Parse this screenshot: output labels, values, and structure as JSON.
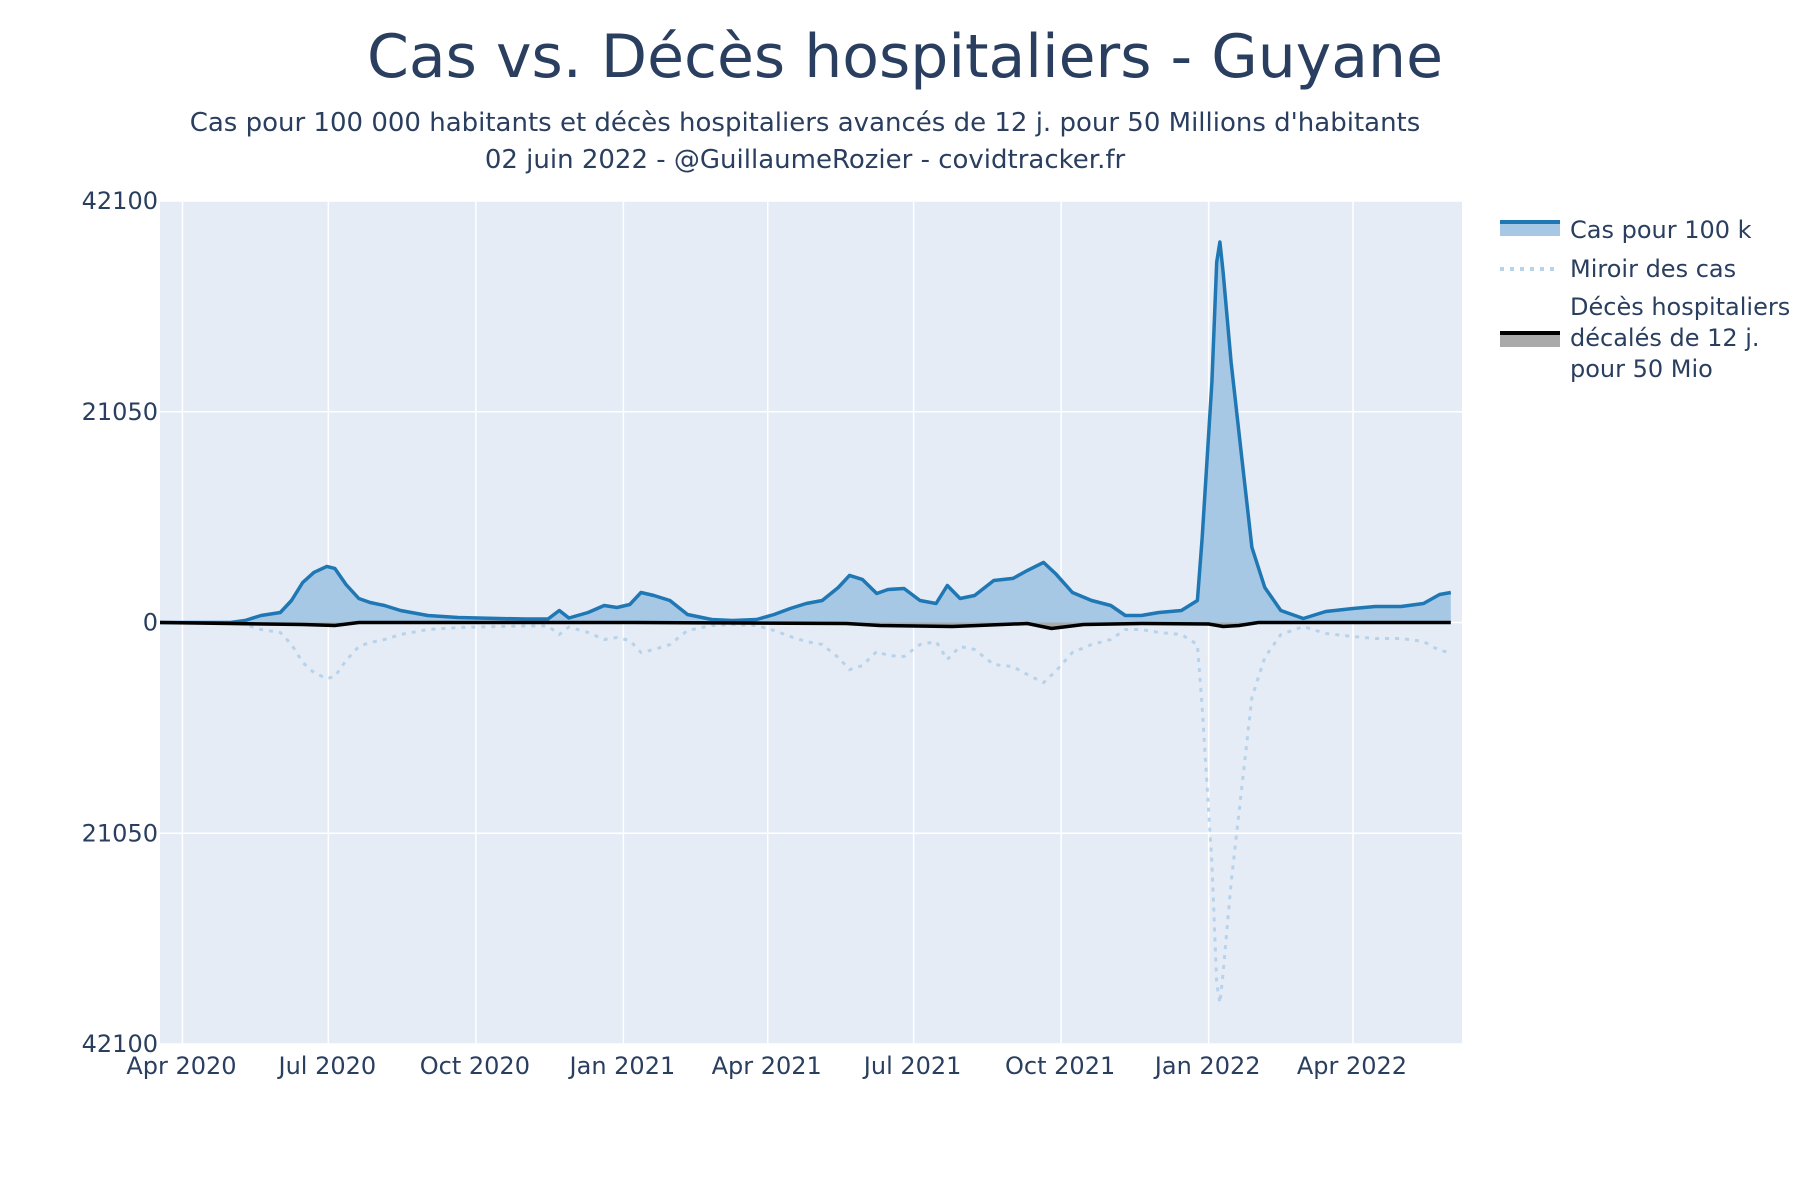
{
  "title": "Cas vs. Décès hospitaliers - Guyane",
  "subtitle_line1": "Cas pour 100 000 habitants et décès hospitaliers avancés de 12 j. pour 50 Millions d'habitants",
  "subtitle_line2": "02 juin 2022 - @GuillaumeRozier - covidtracker.fr",
  "colors": {
    "plot_bg": "#e5ecf6",
    "grid": "#ffffff",
    "cases_line": "#1f77b4",
    "cases_fill": "#a6c8e5",
    "mirror": "#b7d3eb",
    "deaths_line": "#000000",
    "deaths_fill": "#aaaaaa"
  },
  "legend": {
    "cases": "Cas pour 100 k",
    "mirror": "Miroir des cas",
    "deaths_lines": [
      "Décès hospitaliers",
      "décalés de 12 j.",
      "pour 50 Mio"
    ]
  },
  "chart_data": {
    "type": "area",
    "title": "Cas vs. Décès hospitaliers - Guyane",
    "xlabel": "",
    "ylabel": "",
    "x_tick_labels": [
      "Apr 2020",
      "Jul 2020",
      "Oct 2020",
      "Jan 2021",
      "Apr 2021",
      "Jul 2021",
      "Oct 2021",
      "Jan 2022",
      "Apr 2022"
    ],
    "y_tick_labels": [
      "42100",
      "21050",
      "0",
      "21050",
      "42100"
    ],
    "ylim": [
      -42100,
      42100
    ],
    "xlim": [
      "2020-03-18",
      "2022-06-08"
    ],
    "grid": true,
    "legend_position": "right",
    "series": [
      {
        "name": "Cas pour 100 k",
        "style": "line-fill-to-zero",
        "points": [
          [
            "2020-03-18",
            0
          ],
          [
            "2020-05-01",
            0
          ],
          [
            "2020-05-10",
            200
          ],
          [
            "2020-05-20",
            700
          ],
          [
            "2020-06-01",
            1000
          ],
          [
            "2020-06-08",
            2200
          ],
          [
            "2020-06-15",
            4000
          ],
          [
            "2020-06-22",
            5000
          ],
          [
            "2020-06-30",
            5600
          ],
          [
            "2020-07-05",
            5400
          ],
          [
            "2020-07-12",
            3800
          ],
          [
            "2020-07-20",
            2400
          ],
          [
            "2020-07-27",
            2000
          ],
          [
            "2020-08-05",
            1700
          ],
          [
            "2020-08-15",
            1200
          ],
          [
            "2020-09-01",
            700
          ],
          [
            "2020-09-20",
            500
          ],
          [
            "2020-10-15",
            400
          ],
          [
            "2020-11-01",
            350
          ],
          [
            "2020-11-15",
            350
          ],
          [
            "2020-11-22",
            1200
          ],
          [
            "2020-11-28",
            450
          ],
          [
            "2020-12-10",
            1000
          ],
          [
            "2020-12-20",
            1700
          ],
          [
            "2020-12-28",
            1500
          ],
          [
            "2021-01-05",
            1800
          ],
          [
            "2021-01-12",
            3000
          ],
          [
            "2021-01-20",
            2700
          ],
          [
            "2021-01-30",
            2200
          ],
          [
            "2021-02-10",
            800
          ],
          [
            "2021-02-25",
            300
          ],
          [
            "2021-03-10",
            200
          ],
          [
            "2021-03-25",
            300
          ],
          [
            "2021-04-05",
            800
          ],
          [
            "2021-04-15",
            1400
          ],
          [
            "2021-04-25",
            1900
          ],
          [
            "2021-05-05",
            2200
          ],
          [
            "2021-05-15",
            3500
          ],
          [
            "2021-05-22",
            4700
          ],
          [
            "2021-05-30",
            4300
          ],
          [
            "2021-06-08",
            2900
          ],
          [
            "2021-06-15",
            3300
          ],
          [
            "2021-06-25",
            3400
          ],
          [
            "2021-07-05",
            2200
          ],
          [
            "2021-07-15",
            1900
          ],
          [
            "2021-07-22",
            3700
          ],
          [
            "2021-07-30",
            2400
          ],
          [
            "2021-08-08",
            2700
          ],
          [
            "2021-08-20",
            4200
          ],
          [
            "2021-09-01",
            4400
          ],
          [
            "2021-09-10",
            5200
          ],
          [
            "2021-09-20",
            6000
          ],
          [
            "2021-09-28",
            4800
          ],
          [
            "2021-10-08",
            3000
          ],
          [
            "2021-10-20",
            2200
          ],
          [
            "2021-11-01",
            1700
          ],
          [
            "2021-11-10",
            700
          ],
          [
            "2021-11-20",
            700
          ],
          [
            "2021-12-01",
            1000
          ],
          [
            "2021-12-15",
            1200
          ],
          [
            "2021-12-25",
            2200
          ],
          [
            "2021-12-28",
            8500
          ],
          [
            "2022-01-03",
            24000
          ],
          [
            "2022-01-06",
            36000
          ],
          [
            "2022-01-08",
            38000
          ],
          [
            "2022-01-10",
            35000
          ],
          [
            "2022-01-15",
            26000
          ],
          [
            "2022-01-22",
            16000
          ],
          [
            "2022-01-28",
            7500
          ],
          [
            "2022-02-05",
            3500
          ],
          [
            "2022-02-15",
            1200
          ],
          [
            "2022-03-01",
            400
          ],
          [
            "2022-03-15",
            1100
          ],
          [
            "2022-04-01",
            1400
          ],
          [
            "2022-04-15",
            1600
          ],
          [
            "2022-05-01",
            1600
          ],
          [
            "2022-05-15",
            1900
          ],
          [
            "2022-05-25",
            2800
          ],
          [
            "2022-06-01",
            3000
          ]
        ]
      },
      {
        "name": "Miroir des cas",
        "style": "dotted-line",
        "mirror_of": "Cas pour 100 k",
        "note_sign": "negative"
      },
      {
        "name": "Décès hospitaliers décalés de 12 j. pour 50 Mio",
        "style": "line-fill-to-zero",
        "points": [
          [
            "2020-03-18",
            0
          ],
          [
            "2020-05-01",
            -100
          ],
          [
            "2020-06-15",
            -200
          ],
          [
            "2020-07-05",
            -300
          ],
          [
            "2020-07-20",
            0
          ],
          [
            "2021-01-01",
            0
          ],
          [
            "2021-05-20",
            -100
          ],
          [
            "2021-06-10",
            -300
          ],
          [
            "2021-07-25",
            -400
          ],
          [
            "2021-08-10",
            -300
          ],
          [
            "2021-09-10",
            -100
          ],
          [
            "2021-09-25",
            -600
          ],
          [
            "2021-10-15",
            -200
          ],
          [
            "2021-11-20",
            -100
          ],
          [
            "2022-01-01",
            -150
          ],
          [
            "2022-01-10",
            -400
          ],
          [
            "2022-01-20",
            -300
          ],
          [
            "2022-02-01",
            0
          ],
          [
            "2022-06-01",
            0
          ]
        ]
      }
    ]
  }
}
